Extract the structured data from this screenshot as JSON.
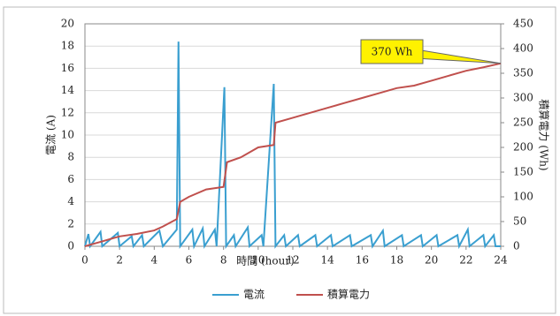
{
  "chart_data": {
    "type": "line",
    "x_label": "時間 (hour)",
    "y_label": "電流 (A)",
    "y2_label": "積算電力 (Wh)",
    "xlim": [
      0,
      24
    ],
    "xticks": [
      0,
      2,
      4,
      6,
      8,
      10,
      12,
      14,
      16,
      18,
      20,
      22,
      24
    ],
    "ylim": [
      0,
      20
    ],
    "yticks": [
      0,
      2,
      4,
      6,
      8,
      10,
      12,
      14,
      16,
      18,
      20
    ],
    "y2lim": [
      0,
      450
    ],
    "y2ticks": [
      0,
      50,
      100,
      150,
      200,
      250,
      300,
      350,
      400,
      450
    ],
    "grid": true,
    "legend": "bottom",
    "annotation": {
      "text": "370 Wh",
      "x": 24,
      "y": 370
    },
    "series": [
      {
        "name": "電流",
        "color": "#3a9fd0",
        "axis": "y",
        "x": [
          0,
          0.2,
          0.3,
          0.9,
          1,
          1.9,
          2,
          2.7,
          2.8,
          3.3,
          3.4,
          4.3,
          4.5,
          5.3,
          5.4,
          5.5,
          6.2,
          6.3,
          6.8,
          6.9,
          7.5,
          7.6,
          8.05,
          8.15,
          8.6,
          8.7,
          9.4,
          9.5,
          10.2,
          10.3,
          10.9,
          11,
          11.5,
          11.6,
          12.3,
          12.4,
          13.3,
          13.4,
          14.2,
          14.3,
          15.3,
          15.4,
          16.5,
          16.6,
          17.2,
          17.3,
          18.3,
          18.4,
          19.4,
          19.5,
          20.3,
          20.4,
          21.5,
          21.6,
          22.1,
          22.2,
          23,
          23.1,
          23.6,
          23.7,
          24
        ],
        "values": [
          0,
          1.1,
          0,
          1.3,
          0,
          1.2,
          0,
          0.9,
          0,
          1,
          0,
          1.4,
          0,
          1.5,
          18.4,
          0,
          1.5,
          0,
          1.6,
          0,
          1.5,
          0,
          14.3,
          0,
          1,
          0,
          1.7,
          0,
          1,
          0,
          14.6,
          0,
          1,
          0,
          1,
          0,
          1,
          0,
          1,
          0,
          1,
          0,
          1,
          0,
          1.4,
          0,
          1,
          0,
          1,
          0,
          1,
          0,
          1,
          0,
          1.5,
          0,
          1,
          0,
          1,
          0,
          0
        ]
      },
      {
        "name": "積算電力",
        "color": "#c0504d",
        "axis": "y2",
        "x": [
          0,
          1,
          2,
          3,
          4,
          4.5,
          5.3,
          5.5,
          6,
          7,
          8,
          8.2,
          9,
          10,
          10.9,
          11,
          12,
          13,
          14,
          15,
          16,
          17,
          18,
          19,
          20,
          21,
          22,
          23,
          24
        ],
        "values": [
          0,
          10,
          20,
          25,
          32,
          40,
          55,
          90,
          100,
          115,
          120,
          170,
          180,
          200,
          205,
          250,
          260,
          270,
          280,
          290,
          300,
          310,
          320,
          325,
          335,
          345,
          355,
          362,
          370
        ]
      }
    ]
  }
}
